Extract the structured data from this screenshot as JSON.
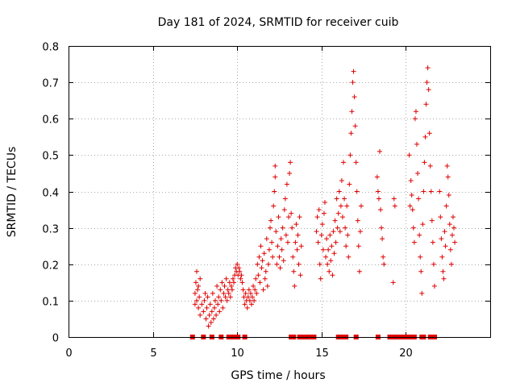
{
  "chart_data": {
    "type": "scatter",
    "title": "Day 181 of 2024, SRMTID for receiver cuib",
    "xlabel": "GPS time / hours",
    "ylabel": "SRMTID / TECUs",
    "xlim": [
      0,
      25
    ],
    "ylim": [
      0,
      0.8
    ],
    "x_ticks": [
      0,
      5,
      10,
      15,
      20
    ],
    "y_ticks": [
      0,
      0.1,
      0.2,
      0.3,
      0.4,
      0.5,
      0.6,
      0.7,
      0.8
    ],
    "x_tick_labels": [
      "0",
      "5",
      "10",
      "15",
      "20"
    ],
    "y_tick_labels": [
      "0",
      "0.1",
      "0.2",
      "0.3",
      "0.4",
      "0.5",
      "0.6",
      "0.7",
      "0.8"
    ],
    "grid": true,
    "marker": "plus",
    "color": "#e00000",
    "series": [
      {
        "name": "SRMTID",
        "points": [
          [
            7.5,
            0.09
          ],
          [
            7.5,
            0.12
          ],
          [
            7.55,
            0.15
          ],
          [
            7.6,
            0.1
          ],
          [
            7.6,
            0.18
          ],
          [
            7.65,
            0.13
          ],
          [
            7.7,
            0.08
          ],
          [
            7.7,
            0.14
          ],
          [
            7.75,
            0.11
          ],
          [
            7.8,
            0.06
          ],
          [
            7.8,
            0.16
          ],
          [
            7.9,
            0.09
          ],
          [
            8.0,
            0.07
          ],
          [
            8.05,
            0.1
          ],
          [
            8.1,
            0.12
          ],
          [
            8.15,
            0.05
          ],
          [
            8.2,
            0.08
          ],
          [
            8.25,
            0.11
          ],
          [
            8.3,
            0.03
          ],
          [
            8.35,
            0.06
          ],
          [
            8.4,
            0.09
          ],
          [
            8.45,
            0.04
          ],
          [
            8.5,
            0.07
          ],
          [
            8.55,
            0.12
          ],
          [
            8.6,
            0.05
          ],
          [
            8.65,
            0.08
          ],
          [
            8.7,
            0.1
          ],
          [
            8.75,
            0.06
          ],
          [
            8.8,
            0.14
          ],
          [
            8.85,
            0.09
          ],
          [
            8.9,
            0.11
          ],
          [
            8.95,
            0.07
          ],
          [
            9.0,
            0.13
          ],
          [
            9.05,
            0.1
          ],
          [
            9.1,
            0.15
          ],
          [
            9.15,
            0.08
          ],
          [
            9.2,
            0.12
          ],
          [
            9.25,
            0.14
          ],
          [
            9.3,
            0.11
          ],
          [
            9.35,
            0.16
          ],
          [
            9.4,
            0.1
          ],
          [
            9.45,
            0.13
          ],
          [
            9.5,
            0.12
          ],
          [
            9.55,
            0.15
          ],
          [
            9.6,
            0.11
          ],
          [
            9.65,
            0.14
          ],
          [
            9.7,
            0.13
          ],
          [
            9.75,
            0.16
          ],
          [
            9.8,
            0.15
          ],
          [
            9.85,
            0.17
          ],
          [
            9.9,
            0.19
          ],
          [
            9.95,
            0.18
          ],
          [
            10.0,
            0.2
          ],
          [
            10.05,
            0.17
          ],
          [
            10.1,
            0.19
          ],
          [
            10.15,
            0.18
          ],
          [
            10.2,
            0.16
          ],
          [
            10.25,
            0.17
          ],
          [
            10.3,
            0.15
          ],
          [
            10.35,
            0.13
          ],
          [
            10.4,
            0.11
          ],
          [
            10.45,
            0.09
          ],
          [
            10.5,
            0.12
          ],
          [
            10.55,
            0.1
          ],
          [
            10.6,
            0.08
          ],
          [
            10.65,
            0.11
          ],
          [
            10.7,
            0.13
          ],
          [
            10.75,
            0.1
          ],
          [
            10.8,
            0.12
          ],
          [
            10.85,
            0.09
          ],
          [
            10.9,
            0.11
          ],
          [
            10.95,
            0.14
          ],
          [
            11.0,
            0.1
          ],
          [
            11.05,
            0.13
          ],
          [
            11.1,
            0.16
          ],
          [
            11.15,
            0.12
          ],
          [
            11.2,
            0.2
          ],
          [
            11.25,
            0.17
          ],
          [
            11.3,
            0.22
          ],
          [
            11.35,
            0.15
          ],
          [
            11.4,
            0.25
          ],
          [
            11.45,
            0.19
          ],
          [
            11.5,
            0.21
          ],
          [
            11.55,
            0.13
          ],
          [
            11.6,
            0.23
          ],
          [
            11.65,
            0.16
          ],
          [
            11.7,
            0.18
          ],
          [
            11.75,
            0.27
          ],
          [
            11.8,
            0.14
          ],
          [
            11.85,
            0.2
          ],
          [
            11.9,
            0.24
          ],
          [
            11.95,
            0.3
          ],
          [
            12.0,
            0.32
          ],
          [
            12.05,
            0.26
          ],
          [
            12.1,
            0.22
          ],
          [
            12.15,
            0.36
          ],
          [
            12.2,
            0.4
          ],
          [
            12.25,
            0.44
          ],
          [
            12.25,
            0.47
          ],
          [
            12.3,
            0.29
          ],
          [
            12.35,
            0.2
          ],
          [
            12.4,
            0.25
          ],
          [
            12.45,
            0.33
          ],
          [
            12.5,
            0.22
          ],
          [
            12.55,
            0.19
          ],
          [
            12.6,
            0.27
          ],
          [
            12.65,
            0.24
          ],
          [
            12.7,
            0.3
          ],
          [
            12.75,
            0.21
          ],
          [
            12.8,
            0.35
          ],
          [
            12.85,
            0.38
          ],
          [
            12.9,
            0.28
          ],
          [
            12.95,
            0.42
          ],
          [
            13.0,
            0.26
          ],
          [
            13.05,
            0.33
          ],
          [
            13.1,
            0.45
          ],
          [
            13.15,
            0.48
          ],
          [
            13.2,
            0.34
          ],
          [
            13.25,
            0.3
          ],
          [
            13.3,
            0.22
          ],
          [
            13.35,
            0.18
          ],
          [
            13.4,
            0.14
          ],
          [
            13.45,
            0.26
          ],
          [
            13.5,
            0.31
          ],
          [
            13.55,
            0.24
          ],
          [
            13.6,
            0.28
          ],
          [
            13.65,
            0.2
          ],
          [
            13.7,
            0.33
          ],
          [
            13.75,
            0.17
          ],
          [
            13.8,
            0.25
          ],
          [
            14.7,
            0.29
          ],
          [
            14.75,
            0.33
          ],
          [
            14.8,
            0.26
          ],
          [
            14.85,
            0.35
          ],
          [
            14.9,
            0.2
          ],
          [
            14.95,
            0.16
          ],
          [
            15.0,
            0.28
          ],
          [
            15.05,
            0.31
          ],
          [
            15.1,
            0.24
          ],
          [
            15.15,
            0.34
          ],
          [
            15.2,
            0.37
          ],
          [
            15.25,
            0.22
          ],
          [
            15.3,
            0.27
          ],
          [
            15.35,
            0.2
          ],
          [
            15.4,
            0.24
          ],
          [
            15.45,
            0.18
          ],
          [
            15.5,
            0.28
          ],
          [
            15.55,
            0.21
          ],
          [
            15.6,
            0.25
          ],
          [
            15.65,
            0.17
          ],
          [
            15.7,
            0.29
          ],
          [
            15.75,
            0.23
          ],
          [
            15.8,
            0.32
          ],
          [
            15.85,
            0.26
          ],
          [
            15.9,
            0.38
          ],
          [
            15.95,
            0.3
          ],
          [
            16.0,
            0.34
          ],
          [
            16.05,
            0.4
          ],
          [
            16.1,
            0.29
          ],
          [
            16.15,
            0.36
          ],
          [
            16.2,
            0.43
          ],
          [
            16.25,
            0.33
          ],
          [
            16.3,
            0.48
          ],
          [
            16.35,
            0.38
          ],
          [
            16.4,
            0.3
          ],
          [
            16.45,
            0.25
          ],
          [
            16.5,
            0.36
          ],
          [
            16.55,
            0.28
          ],
          [
            16.6,
            0.22
          ],
          [
            16.65,
            0.42
          ],
          [
            16.7,
            0.5
          ],
          [
            16.75,
            0.56
          ],
          [
            16.8,
            0.62
          ],
          [
            16.85,
            0.7
          ],
          [
            16.9,
            0.73
          ],
          [
            16.95,
            0.66
          ],
          [
            17.0,
            0.58
          ],
          [
            17.05,
            0.48
          ],
          [
            17.1,
            0.4
          ],
          [
            17.15,
            0.32
          ],
          [
            17.2,
            0.25
          ],
          [
            17.25,
            0.18
          ],
          [
            17.3,
            0.29
          ],
          [
            17.35,
            0.36
          ],
          [
            18.3,
            0.44
          ],
          [
            18.35,
            0.4
          ],
          [
            18.4,
            0.38
          ],
          [
            18.45,
            0.51
          ],
          [
            18.5,
            0.35
          ],
          [
            18.55,
            0.3
          ],
          [
            18.6,
            0.27
          ],
          [
            18.65,
            0.22
          ],
          [
            18.7,
            0.2
          ],
          [
            19.25,
            0.15
          ],
          [
            19.3,
            0.38
          ],
          [
            19.35,
            0.36
          ],
          [
            20.2,
            0.5
          ],
          [
            20.25,
            0.36
          ],
          [
            20.3,
            0.43
          ],
          [
            20.35,
            0.39
          ],
          [
            20.4,
            0.35
          ],
          [
            20.45,
            0.3
          ],
          [
            20.5,
            0.26
          ],
          [
            20.55,
            0.6
          ],
          [
            20.6,
            0.62
          ],
          [
            20.65,
            0.53
          ],
          [
            20.7,
            0.45
          ],
          [
            20.75,
            0.38
          ],
          [
            20.8,
            0.28
          ],
          [
            20.85,
            0.22
          ],
          [
            20.9,
            0.18
          ],
          [
            20.95,
            0.12
          ],
          [
            21.0,
            0.31
          ],
          [
            21.05,
            0.4
          ],
          [
            21.1,
            0.48
          ],
          [
            21.15,
            0.55
          ],
          [
            21.2,
            0.64
          ],
          [
            21.25,
            0.7
          ],
          [
            21.3,
            0.74
          ],
          [
            21.35,
            0.68
          ],
          [
            21.4,
            0.56
          ],
          [
            21.45,
            0.47
          ],
          [
            21.5,
            0.4
          ],
          [
            21.55,
            0.32
          ],
          [
            21.6,
            0.26
          ],
          [
            21.65,
            0.2
          ],
          [
            21.7,
            0.14
          ],
          [
            22.0,
            0.4
          ],
          [
            22.05,
            0.33
          ],
          [
            22.1,
            0.27
          ],
          [
            22.15,
            0.22
          ],
          [
            22.2,
            0.18
          ],
          [
            22.25,
            0.16
          ],
          [
            22.3,
            0.29
          ],
          [
            22.35,
            0.25
          ],
          [
            22.4,
            0.36
          ],
          [
            22.45,
            0.47
          ],
          [
            22.5,
            0.44
          ],
          [
            22.55,
            0.39
          ],
          [
            22.6,
            0.31
          ],
          [
            22.65,
            0.24
          ],
          [
            22.7,
            0.2
          ],
          [
            22.75,
            0.28
          ],
          [
            22.8,
            0.33
          ],
          [
            22.85,
            0.3
          ],
          [
            22.9,
            0.26
          ]
        ]
      }
    ],
    "zero_points_x": [
      7.35,
      8.0,
      8.5,
      9.05,
      9.5,
      9.65,
      9.9,
      10.05,
      10.45,
      13.2,
      13.35,
      13.7,
      13.85,
      13.95,
      14.05,
      14.15,
      14.25,
      14.4,
      14.55,
      16.0,
      16.15,
      16.3,
      16.45,
      17.05,
      18.35,
      19.05,
      19.15,
      19.25,
      19.4,
      19.55,
      19.7,
      19.85,
      20.0,
      20.15,
      20.35,
      20.5,
      20.95,
      21.05,
      21.45,
      21.55,
      21.7
    ]
  }
}
